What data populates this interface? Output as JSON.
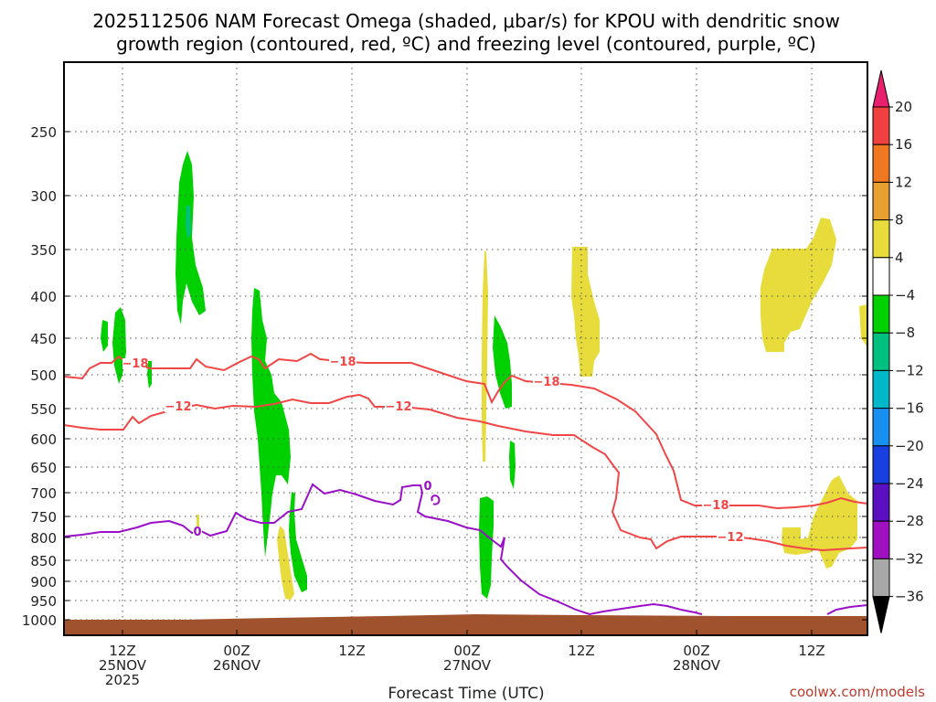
{
  "chart_data": {
    "type": "time-height cross section",
    "title_line1": "2025112506 NAM Forecast Omega (shaded, μbar/s) for KPOU with dendritic snow",
    "title_line2": "growth region (contoured, red, ºC) and freezing level (contoured, purple, ºC)",
    "xlabel": "Forecast Time (UTC)",
    "credit": "coolwx.com/models",
    "y_unit": "hPa",
    "y_ticks": [
      "250",
      "300",
      "350",
      "400",
      "450",
      "500",
      "550",
      "600",
      "650",
      "700",
      "750",
      "800",
      "850",
      "900",
      "950",
      "1000"
    ],
    "x_ticks": [
      {
        "line1": "12Z",
        "line2": "25NOV",
        "line3": "2025"
      },
      {
        "line1": "00Z",
        "line2": "26NOV",
        "line3": ""
      },
      {
        "line1": "12Z",
        "line2": "",
        "line3": ""
      },
      {
        "line1": "00Z",
        "line2": "27NOV",
        "line3": ""
      },
      {
        "line1": "12Z",
        "line2": "",
        "line3": ""
      },
      {
        "line1": "00Z",
        "line2": "28NOV",
        "line3": ""
      },
      {
        "line1": "12Z",
        "line2": "",
        "line3": ""
      }
    ],
    "colorbar": {
      "labels": [
        "20",
        "16",
        "12",
        "8",
        "4",
        "−4",
        "−8",
        "−12",
        "−16",
        "−20",
        "−24",
        "−28",
        "−32",
        "−36"
      ],
      "colors": [
        "#e8206e",
        "#f04040",
        "#f07820",
        "#e8a030",
        "#e8dc3c",
        "#ffffff",
        "#00d000",
        "#00c080",
        "#00b8c8",
        "#1890f0",
        "#1840e0",
        "#5a10c0",
        "#a010c0",
        "#a8a8a8",
        "#000000"
      ]
    },
    "contours": {
      "minus18_label": "−18",
      "minus12_label": "−12",
      "zero_label": "0",
      "zero_label_b": "0",
      "red_color": "#f04646",
      "purple_color": "#9a10c8",
      "terrain_color": "#a0522d"
    }
  }
}
